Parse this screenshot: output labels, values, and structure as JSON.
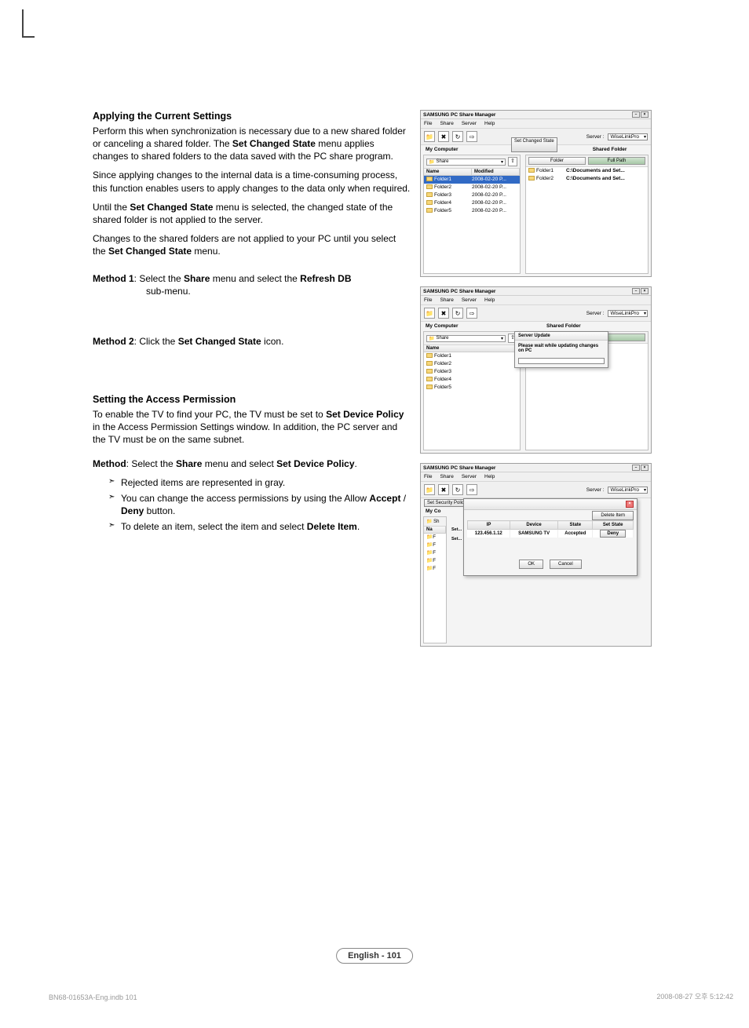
{
  "doc": {
    "section1_title": "Applying the Current Settings",
    "p1a": "Perform this when synchronization is necessary due to a new shared folder or canceling a shared folder. The ",
    "p1b": "Set Changed State",
    "p1c": " menu applies changes to shared folders to the data saved with the PC share program.",
    "p2": "Since applying changes to the internal data is a time-consuming process, this function enables users to apply changes to the data only when required.",
    "p3a": "Until the ",
    "p3b": "Set Changed State",
    "p3c": " menu is selected, the changed state of the shared folder is not applied to the server.",
    "p4a": " Changes to the shared folders are not applied to your PC until you select the ",
    "p4b": "Set Changed State",
    "p4c": " menu.",
    "m1_label": "Method 1",
    "m1a": ": Select the ",
    "m1b": "Share",
    "m1c": " menu and select the ",
    "m1d": "Refresh DB",
    "m1_sub": "sub-menu.",
    "m2_label": "Method 2",
    "m2a": ": Click the ",
    "m2b": "Set Changed State",
    "m2c": " icon.",
    "section2_title": "Setting the Access Permission",
    "s2p1a": "To enable the TV to find your PC, the TV must be set to ",
    "s2p1b": "Set Device Policy",
    "s2p1c": " in the Access Permission Settings window. In addition, the PC server and the TV must be on the same subnet.",
    "s2m_label": "Method",
    "s2ma": ": Select the ",
    "s2mb": "Share",
    "s2mc": " menu and select ",
    "s2md": "Set Device Policy",
    "s2me": ".",
    "li1": "Rejected items are represented in gray.",
    "li2a": "You can change the access permissions by using the Allow ",
    "li2b": "Accept",
    "li2c": " / ",
    "li2d": "Deny",
    "li2e": " button.",
    "li3a": "To delete an item, select the item and select ",
    "li3b": "Delete Item",
    "li3c": "."
  },
  "win_common": {
    "title": "SAMSUNG PC Share Manager",
    "menus": [
      "File",
      "Share",
      "Server",
      "Help"
    ],
    "server_label": "Server :",
    "server_value": "WiseLinkPro",
    "my_computer": "My Computer",
    "shared_folder": "Shared Folder",
    "share_label": "Share",
    "set_changed_btn": "Set Changed State",
    "set_security_btn": "Set Security Policy",
    "col_name": "Name",
    "col_modified": "Modified",
    "col_folder": "Folder",
    "col_fullpath": "Full Path",
    "folders_left": [
      {
        "name": "Folder1",
        "date": "2008-02-20 P..."
      },
      {
        "name": "Folder2",
        "date": "2008-02-20 P..."
      },
      {
        "name": "Folder3",
        "date": "2008-02-20 P..."
      },
      {
        "name": "Folder4",
        "date": "2008-02-20 P..."
      },
      {
        "name": "Folder5",
        "date": "2008-02-20 P..."
      }
    ],
    "shared_right": [
      {
        "name": "Folder1",
        "path": "C:\\Documents and Set..."
      },
      {
        "name": "Folder2",
        "path": "C:\\Documents and Set..."
      }
    ]
  },
  "dlg_update": {
    "title": "Server Update",
    "msg": "Please wait while updating changes on PC"
  },
  "dlg_policy": {
    "delete_btn": "Delete Item",
    "col_ip": "IP",
    "col_device": "Device",
    "col_state": "State",
    "col_setstate": "Set State",
    "row_ip": "123.456.1.12",
    "row_device": "SAMSUNG TV",
    "row_state": "Accepted",
    "row_deny": "Deny",
    "ok": "OK",
    "cancel": "Cancel",
    "side_set": "Set..."
  },
  "badge": "English - 101",
  "footer_left": "BN68-01653A-Eng.indb   101",
  "footer_right": "2008-08-27   오후 5:12:42"
}
